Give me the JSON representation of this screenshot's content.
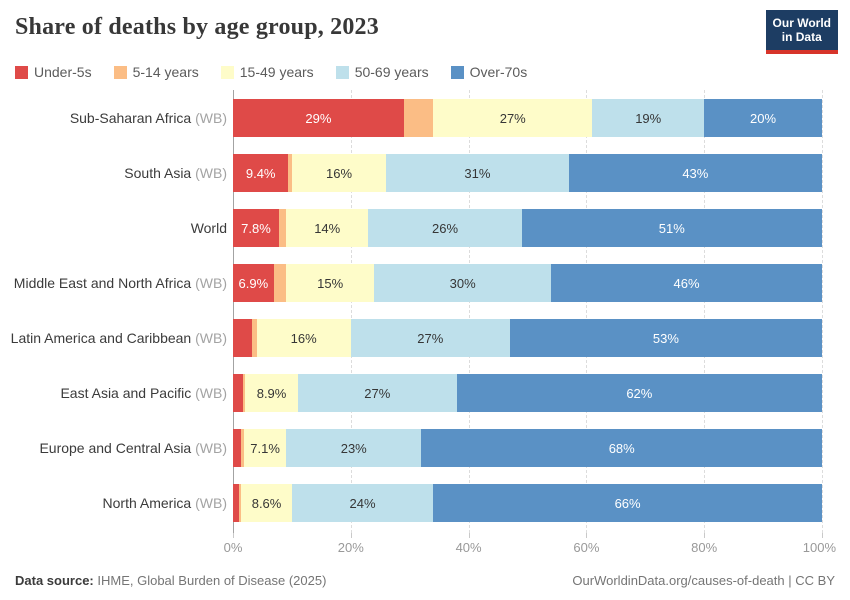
{
  "header": {
    "title": "Share of deaths by age group, 2023"
  },
  "logo": {
    "line1": "Our World",
    "line2": "in Data",
    "bg_color": "#1d3d63",
    "accent_color": "#d7342a"
  },
  "legend": [
    {
      "label": "Under-5s",
      "color": "#df4a48"
    },
    {
      "label": "5-14 years",
      "color": "#fbbd85"
    },
    {
      "label": "15-49 years",
      "color": "#fefcc9"
    },
    {
      "label": "50-69 years",
      "color": "#bee0eb"
    },
    {
      "label": "Over-70s",
      "color": "#5a91c5"
    }
  ],
  "chart_data": {
    "type": "bar",
    "stacked": true,
    "orientation": "horizontal",
    "unit": "%",
    "xlim": [
      0,
      100
    ],
    "grid": "dashed-vertical",
    "legend_position": "top",
    "series_names": [
      "Under-5s",
      "5-14 years",
      "15-49 years",
      "50-69 years",
      "Over-70s"
    ],
    "palette": [
      "#df4a48",
      "#fbbd85",
      "#fefcc9",
      "#bee0eb",
      "#5a91c5"
    ],
    "label_colors": [
      "#ffffff",
      "#363636",
      "#363636",
      "#363636",
      "#ffffff"
    ],
    "x_gridlines": [
      20,
      40,
      60,
      80,
      100
    ],
    "x_ticks": [
      {
        "label": "0%",
        "pos": 0
      },
      {
        "label": "20%",
        "pos": 20
      },
      {
        "label": "40%",
        "pos": 40
      },
      {
        "label": "60%",
        "pos": 60
      },
      {
        "label": "80%",
        "pos": 80
      },
      {
        "label": "100%",
        "pos": 100
      }
    ],
    "rows": [
      {
        "region": "Sub-Saharan Africa",
        "suffix": "(WB)",
        "values": [
          29,
          5,
          27,
          19,
          20
        ],
        "labels": [
          "29%",
          "",
          "27%",
          "19%",
          "20%"
        ]
      },
      {
        "region": "South Asia",
        "suffix": "(WB)",
        "values": [
          9.4,
          0.6,
          16,
          31,
          43
        ],
        "labels": [
          "9.4%",
          "",
          "16%",
          "31%",
          "43%"
        ]
      },
      {
        "region": "World",
        "suffix": "",
        "values": [
          7.8,
          1.2,
          14,
          26,
          51
        ],
        "labels": [
          "7.8%",
          "",
          "14%",
          "26%",
          "51%"
        ]
      },
      {
        "region": "Middle East and North Africa",
        "suffix": "(WB)",
        "values": [
          6.9,
          2.1,
          15,
          30,
          46
        ],
        "labels": [
          "6.9%",
          "",
          "15%",
          "30%",
          "46%"
        ]
      },
      {
        "region": "Latin America and Caribbean",
        "suffix": "(WB)",
        "values": [
          3.2,
          0.8,
          16,
          27,
          53
        ],
        "labels": [
          "",
          "",
          "16%",
          "27%",
          "53%"
        ]
      },
      {
        "region": "East Asia and Pacific",
        "suffix": "(WB)",
        "values": [
          1.7,
          0.4,
          8.9,
          27,
          62
        ],
        "labels": [
          "",
          "",
          "8.9%",
          "27%",
          "62%"
        ]
      },
      {
        "region": "Europe and Central Asia",
        "suffix": "(WB)",
        "values": [
          1.3,
          0.6,
          7.1,
          23,
          68
        ],
        "labels": [
          "",
          "",
          "7.1%",
          "23%",
          "68%"
        ]
      },
      {
        "region": "North America",
        "suffix": "(WB)",
        "values": [
          1.0,
          0.4,
          8.6,
          24,
          66
        ],
        "labels": [
          "",
          "",
          "8.6%",
          "24%",
          "66%"
        ]
      }
    ]
  },
  "footer": {
    "datasource_label": "Data source:",
    "datasource_value": "IHME, Global Burden of Disease (2025)",
    "link": "OurWorldinData.org/causes-of-death",
    "separator": "|",
    "license": "CC BY"
  }
}
